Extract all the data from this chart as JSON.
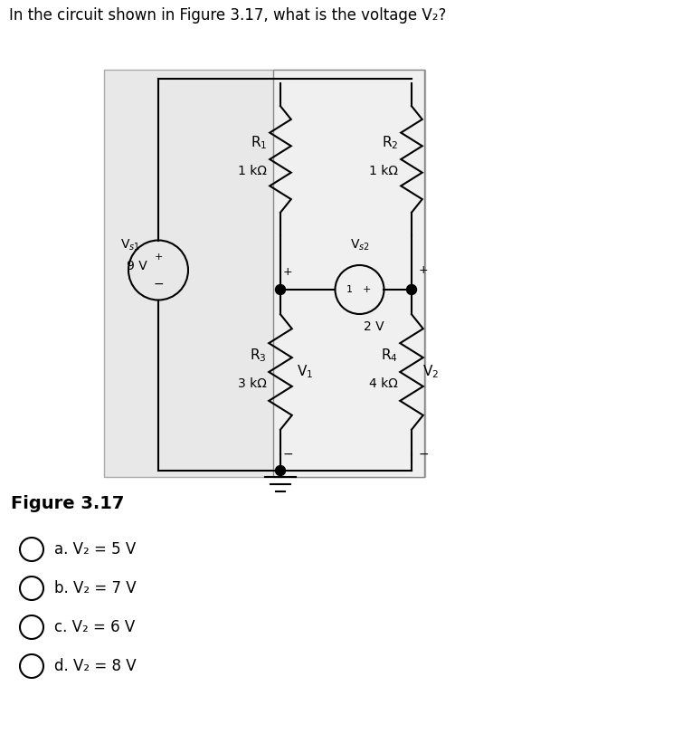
{
  "title": "In the circuit shown in Figure 3.17, what is the voltage V₂?",
  "figure_label": "Figure 3.17",
  "choices": [
    "a. V₂ = 5 V",
    "b. V₂ = 7 V",
    "c. V₂ = 6 V",
    "d. V₂ = 8 V"
  ],
  "bg_color": "#ffffff",
  "text_color": "#000000",
  "R1_label": "R$_1$",
  "R1_val": "1 kΩ",
  "R2_label": "R$_2$",
  "R2_val": "1 kΩ",
  "R3_label": "R$_3$",
  "R3_val": "3 kΩ",
  "R4_label": "R$_4$",
  "R4_val": "4 kΩ",
  "Vs1_label": "V$_{s1}$",
  "Vs1_val": "9 V",
  "Vs2_label": "V$_{s2}$",
  "Vs2_val": "2 V",
  "V1_label": "V$_1$",
  "V2_label": "V$_2$",
  "box_color": "#c8c8c8",
  "wire_color": "#000000",
  "wire_lw": 1.5
}
